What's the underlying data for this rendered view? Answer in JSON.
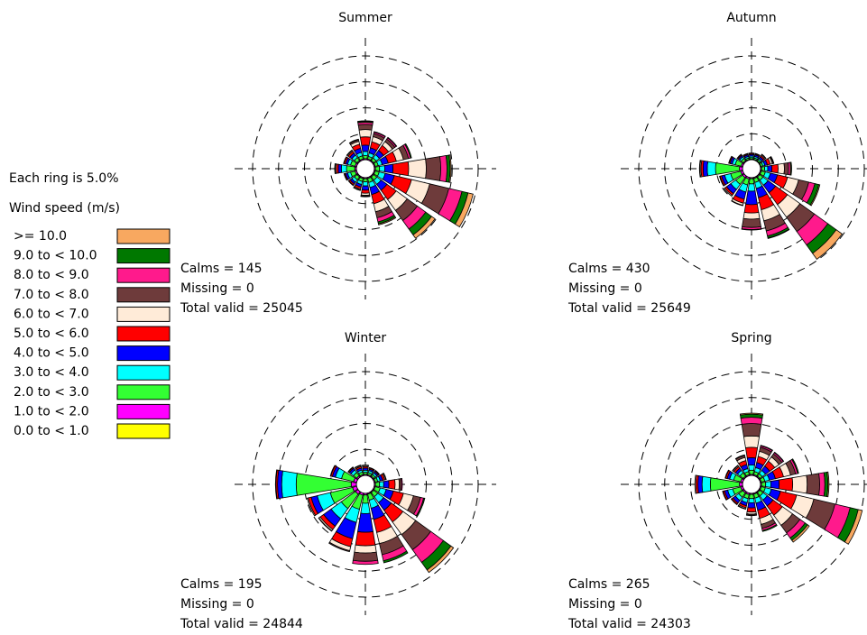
{
  "legend": {
    "ring_note": "Each ring is 5.0%",
    "title": "Wind speed (m/s)",
    "bins": [
      {
        "label": ">= 10.0",
        "color": "#f8a860"
      },
      {
        "label": "9.0 to < 10.0",
        "color": "#007800"
      },
      {
        "label": "8.0 to < 9.0",
        "color": "#ff1a8c"
      },
      {
        "label": "7.0 to < 8.0",
        "color": "#6e3b3b"
      },
      {
        "label": "6.0 to < 7.0",
        "color": "#ffebd8"
      },
      {
        "label": "5.0 to < 6.0",
        "color": "#ff0000"
      },
      {
        "label": "4.0 to < 5.0",
        "color": "#0000ff"
      },
      {
        "label": "3.0 to < 4.0",
        "color": "#00ffff"
      },
      {
        "label": "2.0 to < 3.0",
        "color": "#33ff33"
      },
      {
        "label": "1.0 to < 2.0",
        "color": "#ff00ff"
      },
      {
        "label": "0.0 to < 1.0",
        "color": "#ffff00"
      }
    ]
  },
  "chart_data": [
    {
      "type": "windrose",
      "title": "Summer",
      "rlim": [
        0,
        20
      ],
      "rticks": [
        5,
        10,
        15,
        20
      ],
      "annotations": [
        "Calms = 145",
        "Missing = 0",
        "Total valid = 25045"
      ],
      "values": [
        [
          0.1,
          0.2,
          0.4,
          1.0,
          1.4,
          1.6,
          1.2,
          0.8,
          0.6,
          0.2,
          0
        ],
        [
          0,
          0.1,
          0.3,
          0.6,
          1.0,
          1.2,
          1.0,
          0.7,
          0.5,
          0.2,
          0
        ],
        [
          0,
          0.1,
          0.3,
          0.6,
          0.9,
          1.2,
          1.0,
          0.8,
          0.6,
          0.2,
          0
        ],
        [
          0,
          0.2,
          0.4,
          1.0,
          1.4,
          1.6,
          1.2,
          0.8,
          0.6,
          0.2,
          0
        ],
        [
          0.2,
          0.6,
          1.2,
          2.8,
          3.4,
          3.0,
          1.6,
          1.0,
          0.8,
          0.2,
          0
        ],
        [
          1.0,
          1.2,
          2.6,
          3.8,
          3.6,
          3.4,
          1.8,
          1.2,
          0.8,
          0.2,
          0
        ],
        [
          0.8,
          1.4,
          2.0,
          2.4,
          2.6,
          2.2,
          1.4,
          1.0,
          0.8,
          0.2,
          0
        ],
        [
          0.2,
          0.4,
          0.8,
          1.2,
          1.6,
          1.8,
          1.4,
          1.0,
          0.8,
          0.2,
          0
        ],
        [
          0,
          0,
          0.1,
          0.2,
          0.4,
          0.6,
          0.8,
          0.8,
          0.6,
          0.2,
          0
        ],
        [
          0,
          0,
          0,
          0.1,
          0.2,
          0.4,
          0.5,
          0.6,
          0.6,
          0.2,
          0
        ],
        [
          0,
          0,
          0,
          0,
          0.1,
          0.3,
          0.4,
          0.6,
          0.7,
          0.2,
          0
        ],
        [
          0,
          0,
          0,
          0,
          0.1,
          0.2,
          0.4,
          0.6,
          0.9,
          0.3,
          0
        ],
        [
          0,
          0,
          0,
          0.1,
          0.2,
          0.4,
          0.6,
          1.0,
          1.6,
          0.3,
          0
        ],
        [
          0,
          0,
          0,
          0,
          0.1,
          0.3,
          0.4,
          0.6,
          0.9,
          0.3,
          0
        ],
        [
          0,
          0,
          0,
          0.1,
          0.2,
          0.4,
          0.5,
          0.6,
          0.7,
          0.2,
          0
        ],
        [
          0,
          0,
          0.1,
          0.3,
          0.6,
          0.8,
          0.8,
          0.7,
          0.6,
          0.2,
          0
        ]
      ]
    },
    {
      "type": "windrose",
      "title": "Autumn",
      "rlim": [
        0,
        20
      ],
      "rticks": [
        5,
        10,
        15,
        20
      ],
      "annotations": [
        "Calms = 430",
        "Missing = 0",
        "Total valid = 25649"
      ],
      "values": [
        [
          0,
          0,
          0,
          0,
          0.1,
          0.2,
          0.3,
          0.3,
          0.3,
          0.1,
          0
        ],
        [
          0,
          0,
          0,
          0,
          0.1,
          0.2,
          0.3,
          0.3,
          0.3,
          0.1,
          0
        ],
        [
          0,
          0,
          0,
          0.1,
          0.2,
          0.3,
          0.4,
          0.3,
          0.3,
          0.1,
          0
        ],
        [
          0,
          0,
          0.1,
          0.2,
          0.4,
          0.6,
          0.5,
          0.4,
          0.4,
          0.1,
          0
        ],
        [
          0,
          0.2,
          0.4,
          0.8,
          1.2,
          1.2,
          0.8,
          0.6,
          0.6,
          0.2,
          0
        ],
        [
          0.2,
          0.8,
          1.2,
          2.0,
          2.2,
          2.0,
          1.4,
          1.0,
          0.8,
          0.2,
          0
        ],
        [
          1.4,
          2.0,
          3.2,
          3.4,
          3.0,
          2.8,
          1.8,
          1.2,
          0.8,
          0.2,
          0
        ],
        [
          0.1,
          0.4,
          1.0,
          2.0,
          2.2,
          2.4,
          1.8,
          1.2,
          0.8,
          0.2,
          0
        ],
        [
          0,
          0.1,
          0.4,
          1.6,
          1.2,
          1.6,
          2.6,
          1.4,
          1.0,
          0.2,
          0
        ],
        [
          0,
          0,
          0,
          0.1,
          0.4,
          0.8,
          1.4,
          1.4,
          1.2,
          0.3,
          0
        ],
        [
          0,
          0,
          0,
          0,
          0.2,
          0.4,
          1.0,
          1.2,
          1.6,
          0.4,
          0
        ],
        [
          0,
          0,
          0,
          0,
          0.1,
          0.3,
          0.6,
          1.2,
          2.0,
          0.4,
          0
        ],
        [
          0,
          0,
          0,
          0.1,
          0.2,
          0.4,
          0.8,
          1.6,
          4.6,
          0.6,
          0
        ],
        [
          0,
          0,
          0,
          0,
          0.1,
          0.2,
          0.4,
          0.6,
          1.2,
          0.3,
          0
        ],
        [
          0,
          0,
          0,
          0,
          0.1,
          0.2,
          0.3,
          0.4,
          0.5,
          0.2,
          0
        ],
        [
          0,
          0,
          0,
          0,
          0.1,
          0.2,
          0.3,
          0.3,
          0.3,
          0.1,
          0
        ]
      ]
    },
    {
      "type": "windrose",
      "title": "Winter",
      "rlim": [
        0,
        20
      ],
      "rticks": [
        5,
        10,
        15,
        20
      ],
      "annotations": [
        "Calms = 195",
        "Missing = 0",
        "Total valid = 24844"
      ],
      "values": [
        [
          0,
          0,
          0,
          0.1,
          0.2,
          0.3,
          0.4,
          0.4,
          0.4,
          0.2,
          0
        ],
        [
          0,
          0,
          0,
          0,
          0.1,
          0.2,
          0.3,
          0.4,
          0.4,
          0.2,
          0
        ],
        [
          0,
          0,
          0,
          0,
          0.1,
          0.2,
          0.3,
          0.4,
          0.4,
          0.2,
          0
        ],
        [
          0,
          0,
          0,
          0.1,
          0.2,
          0.4,
          0.5,
          0.5,
          0.5,
          0.2,
          0
        ],
        [
          0,
          0,
          0.2,
          0.4,
          0.8,
          1.2,
          1.0,
          0.8,
          0.8,
          0.2,
          0
        ],
        [
          0,
          0.2,
          0.6,
          1.4,
          2.0,
          2.0,
          1.4,
          1.2,
          1.0,
          0.2,
          0
        ],
        [
          0.6,
          1.8,
          3.0,
          3.6,
          3.0,
          2.8,
          1.8,
          1.4,
          1.0,
          0.2,
          0
        ],
        [
          0,
          0.4,
          1.2,
          2.2,
          2.2,
          2.6,
          2.2,
          1.6,
          1.2,
          0.2,
          0
        ],
        [
          0,
          0,
          0.6,
          1.6,
          1.4,
          2.6,
          3.6,
          2.0,
          1.6,
          0.3,
          0
        ],
        [
          0,
          0,
          0,
          0.2,
          0.8,
          1.6,
          3.2,
          2.6,
          2.8,
          0.4,
          0
        ],
        [
          0,
          0,
          0,
          0.1,
          0.3,
          0.8,
          1.8,
          2.4,
          3.4,
          0.6,
          0
        ],
        [
          0,
          0,
          0,
          0,
          0.2,
          0.6,
          1.2,
          2.6,
          4.4,
          0.8,
          0
        ],
        [
          0,
          0,
          0,
          0,
          0.1,
          0.3,
          0.8,
          2.8,
          10.6,
          1.0,
          0
        ],
        [
          0,
          0,
          0,
          0,
          0.1,
          0.3,
          0.6,
          1.2,
          2.4,
          0.6,
          0
        ],
        [
          0,
          0,
          0,
          0,
          0.1,
          0.2,
          0.4,
          0.6,
          0.8,
          0.3,
          0
        ],
        [
          0,
          0,
          0,
          0.1,
          0.2,
          0.3,
          0.4,
          0.4,
          0.5,
          0.2,
          0
        ]
      ]
    },
    {
      "type": "windrose",
      "title": "Spring",
      "rlim": [
        0,
        20
      ],
      "rticks": [
        5,
        10,
        15,
        20
      ],
      "annotations": [
        "Calms = 265",
        "Missing = 0",
        "Total valid = 24303"
      ],
      "values": [
        [
          0.2,
          0.6,
          1.2,
          2.4,
          2.2,
          2.0,
          1.4,
          1.0,
          0.8,
          0.2,
          0
        ],
        [
          0,
          0.1,
          0.3,
          0.8,
          1.0,
          1.2,
          1.0,
          0.8,
          0.6,
          0.2,
          0
        ],
        [
          0,
          0.1,
          0.3,
          0.7,
          1.0,
          1.2,
          1.0,
          0.8,
          0.6,
          0.2,
          0
        ],
        [
          0,
          0.2,
          0.4,
          1.0,
          1.4,
          1.6,
          1.2,
          0.9,
          0.7,
          0.2,
          0
        ],
        [
          0.2,
          0.6,
          1.0,
          2.4,
          2.8,
          2.6,
          1.6,
          1.0,
          0.8,
          0.2,
          0
        ],
        [
          0.8,
          1.6,
          3.0,
          4.2,
          3.4,
          3.2,
          1.8,
          1.2,
          0.8,
          0.2,
          0
        ],
        [
          0.4,
          0.6,
          1.2,
          1.8,
          2.4,
          2.2,
          1.4,
          1.0,
          0.8,
          0.2,
          0
        ],
        [
          0,
          0.2,
          0.4,
          0.8,
          1.2,
          1.6,
          1.4,
          1.0,
          0.8,
          0.2,
          0
        ],
        [
          0,
          0,
          0.1,
          0.2,
          0.4,
          0.8,
          1.0,
          0.8,
          0.8,
          0.2,
          0
        ],
        [
          0,
          0,
          0,
          0.1,
          0.2,
          0.4,
          0.6,
          0.8,
          0.8,
          0.3,
          0
        ],
        [
          0,
          0,
          0,
          0,
          0.1,
          0.3,
          0.6,
          0.8,
          1.0,
          0.3,
          0
        ],
        [
          0,
          0,
          0,
          0,
          0.1,
          0.3,
          0.6,
          1.0,
          1.6,
          0.4,
          0
        ],
        [
          0,
          0,
          0,
          0,
          0.2,
          0.4,
          0.8,
          1.6,
          5.6,
          0.6,
          0
        ],
        [
          0,
          0,
          0,
          0,
          0.1,
          0.3,
          0.5,
          0.8,
          1.4,
          0.4,
          0
        ],
        [
          0,
          0,
          0,
          0.1,
          0.2,
          0.4,
          0.5,
          0.6,
          0.8,
          0.2,
          0
        ],
        [
          0,
          0,
          0.1,
          0.4,
          0.6,
          0.8,
          0.8,
          0.6,
          0.6,
          0.2,
          0
        ]
      ]
    }
  ]
}
